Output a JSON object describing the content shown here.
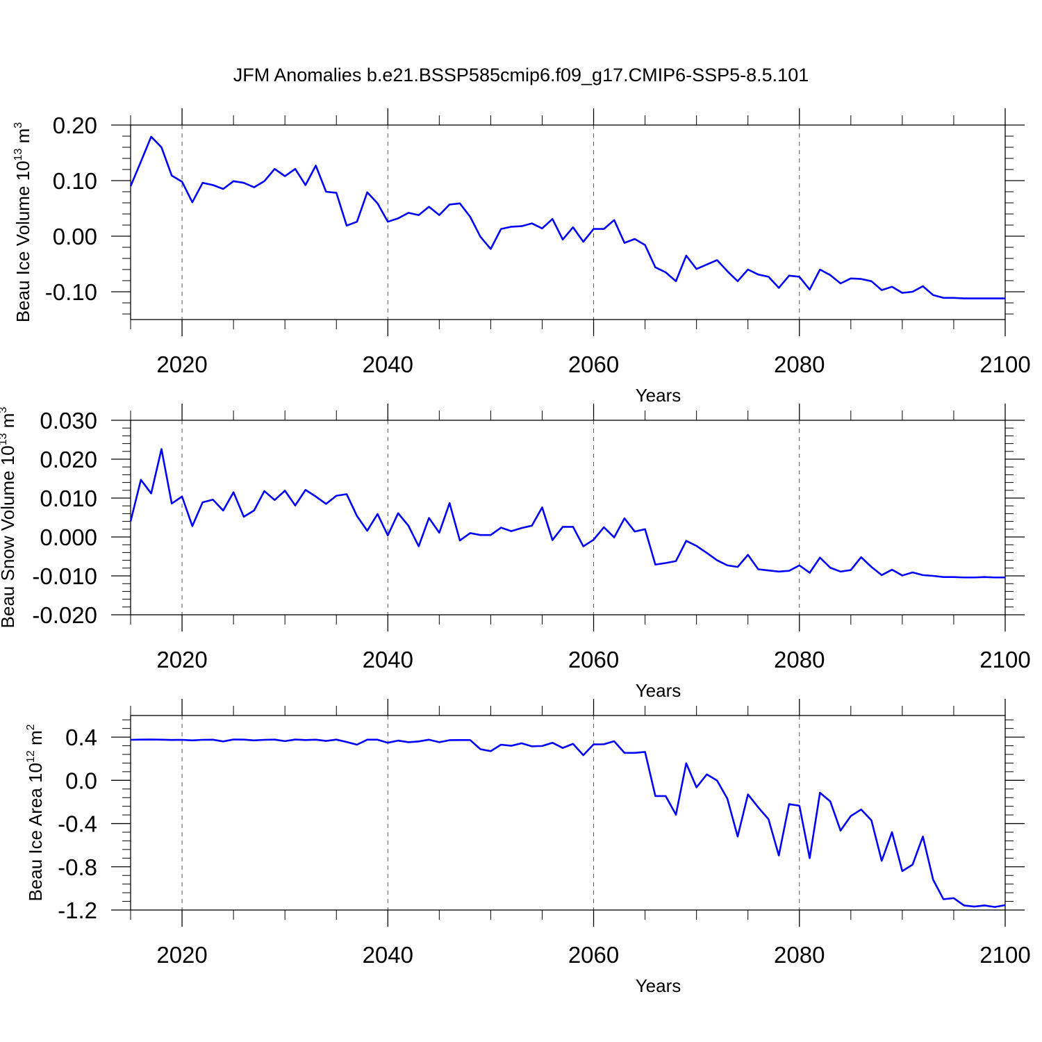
{
  "title": "JFM Anomalies b.e21.BSSP585cmip6.f09_g17.CMIP6-SSP5-8.5.101",
  "colors": {
    "line": "#0000ff",
    "frame": "#000000",
    "grid": "#555555"
  },
  "chart_data": [
    {
      "type": "line",
      "ylabel_main": "Beau Ice Volume 10",
      "ylabel_exp": "13",
      "ylabel_unit": " m",
      "ylabel_unit_exp": "3",
      "xlabel": "Years",
      "xlim": [
        2015,
        2100
      ],
      "ylim": [
        -0.15,
        0.2
      ],
      "xticks": [
        2020,
        2040,
        2060,
        2080,
        2100
      ],
      "xtick_labels": [
        "2020",
        "2040",
        "2060",
        "2080",
        "2100"
      ],
      "yticks": [
        0.2,
        0.1,
        0.0,
        -0.1
      ],
      "ytick_labels": [
        "0.20",
        "0.10",
        "0.00",
        "-0.10"
      ],
      "grid": "vertical-dashed",
      "x_start": 2015,
      "values": [
        0.09,
        0.134,
        0.179,
        0.16,
        0.109,
        0.098,
        0.061,
        0.096,
        0.092,
        0.085,
        0.099,
        0.096,
        0.088,
        0.099,
        0.121,
        0.108,
        0.121,
        0.092,
        0.127,
        0.08,
        0.078,
        0.019,
        0.026,
        0.079,
        0.059,
        0.026,
        0.032,
        0.042,
        0.038,
        0.053,
        0.038,
        0.057,
        0.059,
        0.035,
        -0.001,
        -0.023,
        0.013,
        0.017,
        0.018,
        0.023,
        0.014,
        0.031,
        -0.006,
        0.016,
        -0.01,
        0.013,
        0.013,
        0.029,
        -0.012,
        -0.005,
        -0.016,
        -0.056,
        -0.065,
        -0.081,
        -0.035,
        -0.059,
        -0.051,
        -0.043,
        -0.063,
        -0.081,
        -0.06,
        -0.069,
        -0.073,
        -0.093,
        -0.071,
        -0.073,
        -0.096,
        -0.06,
        -0.07,
        -0.085,
        -0.076,
        -0.077,
        -0.081,
        -0.097,
        -0.091,
        -0.102,
        -0.1,
        -0.09,
        -0.106,
        -0.111,
        -0.111,
        -0.112,
        -0.112,
        -0.112,
        -0.112,
        -0.112
      ]
    },
    {
      "type": "line",
      "ylabel_main": "Beau Snow Volume 10",
      "ylabel_exp": "13",
      "ylabel_unit": " m",
      "ylabel_unit_exp": "3",
      "xlabel": "Years",
      "xlim": [
        2015,
        2100
      ],
      "ylim": [
        -0.02,
        0.03
      ],
      "xticks": [
        2020,
        2040,
        2060,
        2080,
        2100
      ],
      "xtick_labels": [
        "2020",
        "2040",
        "2060",
        "2080",
        "2100"
      ],
      "yticks": [
        0.03,
        0.02,
        0.01,
        0.0,
        -0.01,
        -0.02
      ],
      "ytick_labels": [
        "0.030",
        "0.020",
        "0.010",
        "0.000",
        "-0.010",
        "-0.020"
      ],
      "grid": "vertical-dashed",
      "x_start": 2015,
      "values": [
        0.004,
        0.0147,
        0.0112,
        0.0226,
        0.0086,
        0.0104,
        0.0028,
        0.0089,
        0.0096,
        0.0068,
        0.0115,
        0.0052,
        0.0068,
        0.0118,
        0.0095,
        0.0119,
        0.0081,
        0.0121,
        0.0104,
        0.0085,
        0.0106,
        0.011,
        0.0054,
        0.0016,
        0.0059,
        0.0004,
        0.0061,
        0.0029,
        -0.0024,
        0.0049,
        0.0011,
        0.0087,
        -0.0009,
        0.001,
        0.0005,
        0.0005,
        0.0024,
        0.0015,
        0.0023,
        0.0029,
        0.0076,
        -0.0008,
        0.0026,
        0.0026,
        -0.0024,
        -0.0007,
        0.0025,
        -0.0001,
        0.0048,
        0.0014,
        0.002,
        -0.0071,
        -0.0067,
        -0.0062,
        -0.001,
        -0.0023,
        -0.0041,
        -0.006,
        -0.0073,
        -0.0077,
        -0.0046,
        -0.0083,
        -0.0086,
        -0.0089,
        -0.0087,
        -0.0073,
        -0.0092,
        -0.0053,
        -0.0079,
        -0.0089,
        -0.0085,
        -0.0052,
        -0.0077,
        -0.0098,
        -0.0084,
        -0.0099,
        -0.0091,
        -0.0098,
        -0.01,
        -0.0103,
        -0.0103,
        -0.0104,
        -0.0104,
        -0.0103,
        -0.0104,
        -0.0104
      ]
    },
    {
      "type": "line",
      "ylabel_main": "Beau Ice Area 10",
      "ylabel_exp": "12",
      "ylabel_unit": " m",
      "ylabel_unit_exp": "2",
      "xlabel": "Years",
      "xlim": [
        2015,
        2100
      ],
      "ylim": [
        -1.2,
        0.6
      ],
      "xticks": [
        2020,
        2040,
        2060,
        2080,
        2100
      ],
      "xtick_labels": [
        "2020",
        "2040",
        "2060",
        "2080",
        "2100"
      ],
      "yticks": [
        0.4,
        0.0,
        -0.4,
        -0.8,
        -1.2
      ],
      "ytick_labels": [
        "0.4",
        "0.0",
        "-0.4",
        "-0.8",
        "-1.2"
      ],
      "grid": "vertical-dashed",
      "x_start": 2015,
      "values": [
        0.375,
        0.377,
        0.378,
        0.376,
        0.374,
        0.375,
        0.37,
        0.375,
        0.376,
        0.36,
        0.378,
        0.377,
        0.37,
        0.375,
        0.377,
        0.363,
        0.378,
        0.373,
        0.376,
        0.365,
        0.377,
        0.355,
        0.33,
        0.376,
        0.376,
        0.348,
        0.368,
        0.353,
        0.36,
        0.376,
        0.353,
        0.372,
        0.373,
        0.373,
        0.288,
        0.27,
        0.33,
        0.32,
        0.343,
        0.315,
        0.318,
        0.348,
        0.3,
        0.338,
        0.233,
        0.333,
        0.334,
        0.362,
        0.254,
        0.254,
        0.263,
        -0.145,
        -0.145,
        -0.318,
        0.158,
        -0.065,
        0.055,
        -0.002,
        -0.17,
        -0.52,
        -0.13,
        -0.25,
        -0.36,
        -0.695,
        -0.22,
        -0.235,
        -0.72,
        -0.115,
        -0.195,
        -0.465,
        -0.33,
        -0.27,
        -0.37,
        -0.745,
        -0.48,
        -0.84,
        -0.78,
        -0.52,
        -0.92,
        -1.1,
        -1.09,
        -1.158,
        -1.168,
        -1.158,
        -1.172,
        -1.155
      ]
    }
  ]
}
